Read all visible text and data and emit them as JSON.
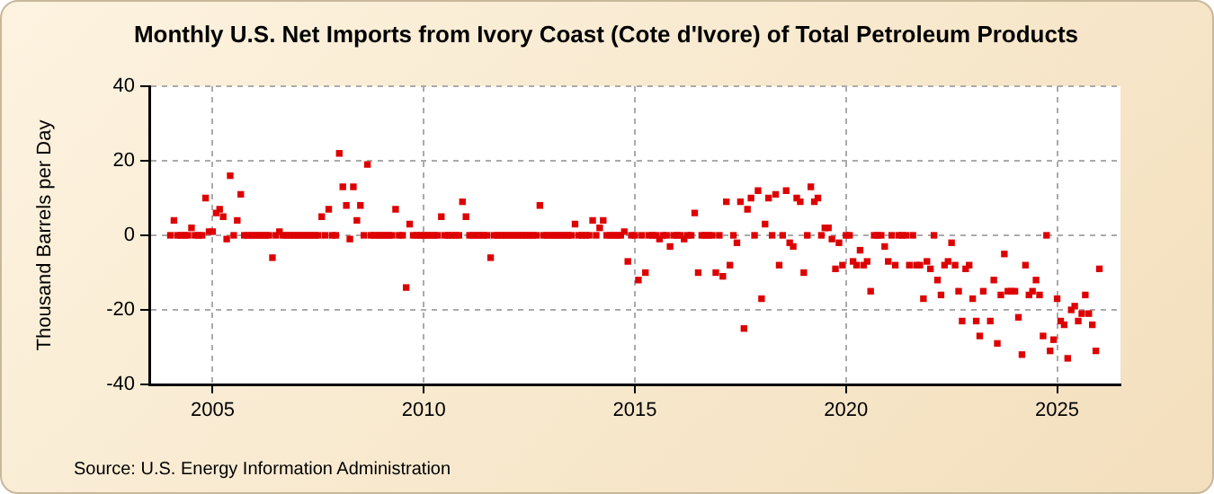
{
  "chart_data": {
    "type": "scatter",
    "title": "Monthly U.S. Net Imports from Ivory Coast (Cote d'Ivore) of Total Petroleum Products",
    "ylabel": "Thousand Barrels per Day",
    "annotations": [
      "Source: U.S. Energy Information Administration"
    ],
    "x": [
      "2004-01",
      "2004-02",
      "2004-03",
      "2004-04",
      "2004-05",
      "2004-06",
      "2004-07",
      "2004-08",
      "2004-09",
      "2004-10",
      "2004-11",
      "2004-12",
      "2005-01",
      "2005-02",
      "2005-03",
      "2005-04",
      "2005-05",
      "2005-06",
      "2005-07",
      "2005-08",
      "2005-09",
      "2005-10",
      "2005-11",
      "2005-12",
      "2006-01",
      "2006-02",
      "2006-03",
      "2006-04",
      "2006-05",
      "2006-06",
      "2006-07",
      "2006-08",
      "2006-09",
      "2006-10",
      "2006-11",
      "2006-12",
      "2007-01",
      "2007-02",
      "2007-03",
      "2007-04",
      "2007-05",
      "2007-06",
      "2007-07",
      "2007-08",
      "2007-09",
      "2007-10",
      "2007-11",
      "2007-12",
      "2008-01",
      "2008-02",
      "2008-03",
      "2008-04",
      "2008-05",
      "2008-06",
      "2008-07",
      "2008-08",
      "2008-09",
      "2008-10",
      "2008-11",
      "2008-12",
      "2009-01",
      "2009-02",
      "2009-03",
      "2009-04",
      "2009-05",
      "2009-06",
      "2009-07",
      "2009-08",
      "2009-09",
      "2009-10",
      "2009-11",
      "2009-12",
      "2010-01",
      "2010-02",
      "2010-03",
      "2010-04",
      "2010-05",
      "2010-06",
      "2010-07",
      "2010-08",
      "2010-09",
      "2010-10",
      "2010-11",
      "2010-12",
      "2011-01",
      "2011-02",
      "2011-03",
      "2011-04",
      "2011-05",
      "2011-06",
      "2011-07",
      "2011-08",
      "2011-09",
      "2011-10",
      "2011-11",
      "2011-12",
      "2012-01",
      "2012-02",
      "2012-03",
      "2012-04",
      "2012-05",
      "2012-06",
      "2012-07",
      "2012-08",
      "2012-09",
      "2012-10",
      "2012-11",
      "2012-12",
      "2013-01",
      "2013-02",
      "2013-03",
      "2013-04",
      "2013-05",
      "2013-06",
      "2013-07",
      "2013-08",
      "2013-09",
      "2013-10",
      "2013-11",
      "2013-12",
      "2014-01",
      "2014-02",
      "2014-03",
      "2014-04",
      "2014-05",
      "2014-06",
      "2014-07",
      "2014-08",
      "2014-09",
      "2014-10",
      "2014-11",
      "2014-12",
      "2015-01",
      "2015-02",
      "2015-03",
      "2015-04",
      "2015-05",
      "2015-06",
      "2015-07",
      "2015-08",
      "2015-09",
      "2015-10",
      "2015-11",
      "2015-12",
      "2016-01",
      "2016-02",
      "2016-03",
      "2016-04",
      "2016-05",
      "2016-06",
      "2016-07",
      "2016-08",
      "2016-09",
      "2016-10",
      "2016-11",
      "2016-12",
      "2017-01",
      "2017-02",
      "2017-03",
      "2017-04",
      "2017-05",
      "2017-06",
      "2017-07",
      "2017-08",
      "2017-09",
      "2017-10",
      "2017-11",
      "2017-12",
      "2018-01",
      "2018-02",
      "2018-03",
      "2018-04",
      "2018-05",
      "2018-06",
      "2018-07",
      "2018-08",
      "2018-09",
      "2018-10",
      "2018-11",
      "2018-12",
      "2019-01",
      "2019-02",
      "2019-03",
      "2019-04",
      "2019-05",
      "2019-06",
      "2019-07",
      "2019-08",
      "2019-09",
      "2019-10",
      "2019-11",
      "2019-12",
      "2020-01",
      "2020-02",
      "2020-03",
      "2020-04",
      "2020-05",
      "2020-06",
      "2020-07",
      "2020-08",
      "2020-09",
      "2020-10",
      "2020-11",
      "2020-12",
      "2021-01",
      "2021-02",
      "2021-03",
      "2021-04",
      "2021-05",
      "2021-06",
      "2021-07",
      "2021-08",
      "2021-09",
      "2021-10",
      "2021-11",
      "2021-12",
      "2022-01",
      "2022-02",
      "2022-03",
      "2022-04",
      "2022-05",
      "2022-06",
      "2022-07",
      "2022-08",
      "2022-09",
      "2022-10",
      "2022-11",
      "2022-12",
      "2023-01",
      "2023-02",
      "2023-03",
      "2023-04",
      "2023-05",
      "2023-06",
      "2023-07",
      "2023-08",
      "2023-09",
      "2023-10",
      "2023-11",
      "2023-12",
      "2024-01",
      "2024-02",
      "2024-03",
      "2024-04",
      "2024-05",
      "2024-06",
      "2024-07",
      "2024-08",
      "2024-09",
      "2024-10",
      "2024-11",
      "2024-12",
      "2025-01",
      "2025-02",
      "2025-03",
      "2025-04",
      "2025-05",
      "2025-06",
      "2025-07",
      "2025-08",
      "2025-09",
      "2025-10",
      "2025-11",
      "2025-12",
      "2026-01"
    ],
    "series": [
      {
        "color": "#dd0000",
        "values": [
          0,
          4,
          0,
          0,
          0,
          0,
          2,
          0,
          0,
          0,
          10,
          1,
          1,
          6,
          7,
          5,
          -1,
          16,
          0,
          4,
          11,
          0,
          0,
          0,
          0,
          0,
          0,
          0,
          0,
          -6,
          0,
          1,
          0,
          0,
          0,
          0,
          0,
          0,
          0,
          0,
          0,
          0,
          0,
          5,
          0,
          7,
          0,
          0,
          22,
          13,
          8,
          -1,
          13,
          4,
          8,
          0,
          19,
          0,
          0,
          0,
          0,
          0,
          0,
          0,
          7,
          0,
          0,
          -14,
          3,
          0,
          0,
          0,
          0,
          0,
          0,
          0,
          0,
          5,
          0,
          0,
          0,
          0,
          0,
          9,
          5,
          0,
          0,
          0,
          0,
          0,
          0,
          -6,
          0,
          0,
          0,
          0,
          0,
          0,
          0,
          0,
          0,
          0,
          0,
          0,
          0,
          8,
          0,
          0,
          0,
          0,
          0,
          0,
          0,
          0,
          0,
          3,
          0,
          0,
          0,
          0,
          4,
          0,
          2,
          4,
          0,
          0,
          0,
          0,
          0,
          1,
          -7,
          0,
          0,
          -12,
          0,
          -10,
          0,
          0,
          0,
          -1,
          0,
          0,
          -3,
          0,
          0,
          0,
          -1,
          0,
          0,
          6,
          -10,
          0,
          0,
          0,
          0,
          -10,
          0,
          -11,
          9,
          -8,
          0,
          -2,
          9,
          -25,
          7,
          10,
          0,
          12,
          -17,
          3,
          10,
          0,
          11,
          -8,
          0,
          12,
          -2,
          -3,
          10,
          9,
          -10,
          0,
          13,
          9,
          10,
          0,
          2,
          2,
          -1,
          -9,
          -2,
          -8,
          0,
          0,
          -7,
          -8,
          -4,
          -8,
          -7,
          -15,
          0,
          0,
          0,
          -3,
          -7,
          0,
          -8,
          0,
          0,
          0,
          -8,
          0,
          -8,
          -8,
          -17,
          -7,
          -9,
          0,
          -12,
          -16,
          -8,
          -7,
          -2,
          -8,
          -15,
          -23,
          -9,
          -8,
          -17,
          -23,
          -27,
          -15,
          null,
          -23,
          -12,
          -29,
          -16,
          -5,
          -15,
          -15,
          -15,
          -22,
          -32,
          -8,
          -16,
          -15,
          -12,
          -16,
          -27,
          0,
          -31,
          -28,
          -17,
          -23,
          -24,
          -33,
          -20,
          -19,
          -23,
          -21,
          -16,
          -21,
          -24,
          -31,
          -9
        ]
      }
    ],
    "xlim": [
      "2003-07",
      "2026-07"
    ],
    "xticks": [
      "2005",
      "2010",
      "2015",
      "2020",
      "2025"
    ],
    "ylim": [
      -40,
      40
    ],
    "yticks": [
      -40,
      -20,
      0,
      20,
      40
    ],
    "grid": true,
    "legend": false,
    "marker": "square"
  }
}
